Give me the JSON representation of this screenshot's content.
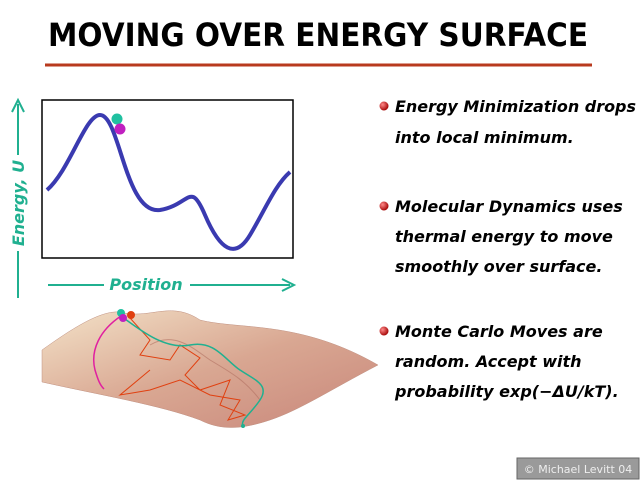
{
  "title": "MOVING OVER ENERGY SURFACE",
  "axes": {
    "y_label": "Energy, U",
    "x_label": "Position"
  },
  "bullets": [
    {
      "lines": [
        "Energy Minimization drops",
        "into local minimum."
      ]
    },
    {
      "lines": [
        "Molecular Dynamics uses",
        "thermal energy to move",
        "smoothly over surface."
      ]
    },
    {
      "lines": [
        "Monte Carlo Moves are",
        "random. Accept with",
        "probability exp(−ΔU/kT)."
      ]
    }
  ],
  "credit": "© Michael Levitt 04"
}
